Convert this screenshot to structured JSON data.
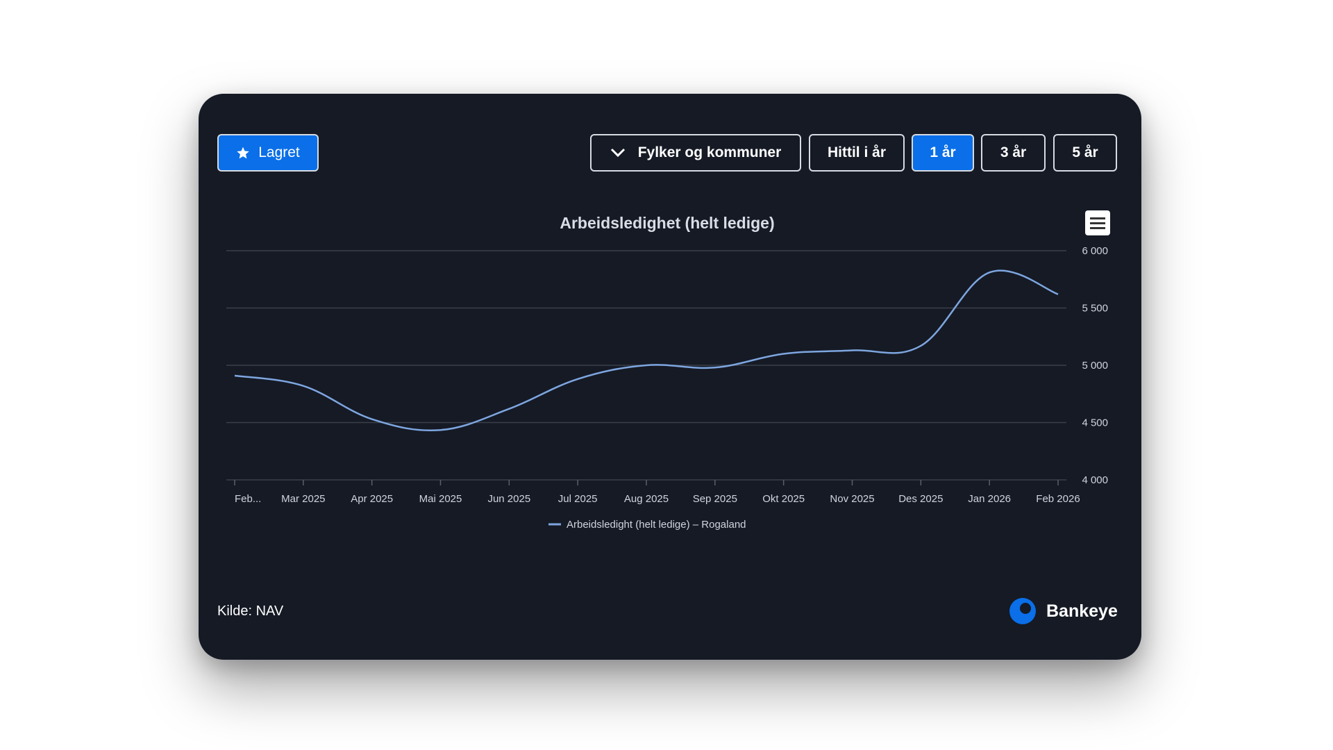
{
  "toolbar": {
    "saved_label": "Lagret",
    "region_label": "Fylker og kommuner",
    "ranges": [
      "Hittil i år",
      "1 år",
      "3 år",
      "5 år"
    ],
    "active_range": "1 år"
  },
  "footer": {
    "source": "Kilde: NAV",
    "brand": "Bankeye"
  },
  "colors": {
    "background": "#151a25",
    "accent": "#0a6fe8",
    "line": "#7ea6e0"
  },
  "chart_data": {
    "type": "line",
    "title": "Arbeidsledighet (helt ledige)",
    "xlabel": "",
    "ylabel": "",
    "x": [
      "Feb...",
      "Mar 2025",
      "Apr 2025",
      "Mai 2025",
      "Jun 2025",
      "Jul 2025",
      "Aug 2025",
      "Sep 2025",
      "Okt 2025",
      "Nov 2025",
      "Des 2025",
      "Jan 2026",
      "Feb 2026"
    ],
    "series": [
      {
        "name": "Arbeidsledight (helt ledige) – Rogaland",
        "values": [
          4910,
          4820,
          4530,
          4435,
          4620,
          4880,
          5000,
          4980,
          5100,
          5130,
          5170,
          5810,
          5620
        ]
      }
    ],
    "ylim": [
      4000,
      6000
    ],
    "y_ticks": [
      {
        "value": 6000,
        "label": "6 000"
      },
      {
        "value": 5500,
        "label": "5 500"
      },
      {
        "value": 5000,
        "label": "5 000"
      },
      {
        "value": 4500,
        "label": "4 500"
      },
      {
        "value": 4000,
        "label": "4 000"
      }
    ],
    "y_axis_side": "right",
    "grid": true,
    "legend": "bottom-center"
  }
}
